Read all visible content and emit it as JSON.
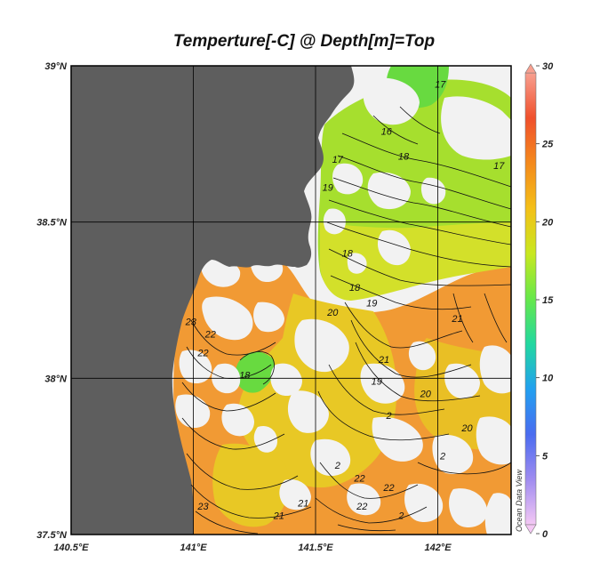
{
  "title": "Temperture[-C] @ Depth[m]=Top",
  "watermark": "Ocean Data View",
  "x_axis": {
    "ticks": [
      {
        "value": 140.5,
        "label": "140.5°E"
      },
      {
        "value": 141.0,
        "label": "141°E"
      },
      {
        "value": 141.5,
        "label": "141.5°E"
      },
      {
        "value": 142.0,
        "label": "142°E"
      }
    ],
    "range": [
      140.5,
      142.3
    ]
  },
  "y_axis": {
    "ticks": [
      {
        "value": 37.5,
        "label": "37.5°N"
      },
      {
        "value": 38.0,
        "label": "38°N"
      },
      {
        "value": 38.5,
        "label": "38.5°N"
      },
      {
        "value": 39.0,
        "label": "39°N"
      }
    ],
    "range": [
      37.5,
      39.0
    ]
  },
  "colorbar": {
    "range": [
      0,
      30
    ],
    "ticks": [
      {
        "value": 0,
        "label": "0"
      },
      {
        "value": 5,
        "label": "5"
      },
      {
        "value": 10,
        "label": "10"
      },
      {
        "value": 15,
        "label": "15"
      },
      {
        "value": 20,
        "label": "20"
      },
      {
        "value": 25,
        "label": "25"
      },
      {
        "value": 30,
        "label": "30"
      }
    ],
    "colors": [
      "#f4c8f4",
      "#a08cf0",
      "#4a6cf0",
      "#22a0f0",
      "#22d8a0",
      "#66e84a",
      "#c8e820",
      "#f4c018",
      "#f48a1c",
      "#f0502c",
      "#f8a090"
    ]
  },
  "colors": {
    "land": "#5e5e5e",
    "no_data": "#f2f2f2",
    "warm": "#f19a34",
    "mid": "#e8c825",
    "cool": "#a6df2e",
    "coolest": "#68da40",
    "contour": "#111111"
  },
  "contour_labels": [
    {
      "text": "17",
      "lon": 142.01,
      "lat": 38.93
    },
    {
      "text": "16",
      "lon": 141.79,
      "lat": 38.78
    },
    {
      "text": "17",
      "lon": 141.59,
      "lat": 38.69
    },
    {
      "text": "18",
      "lon": 141.86,
      "lat": 38.7
    },
    {
      "text": "19",
      "lon": 141.55,
      "lat": 38.6
    },
    {
      "text": "17",
      "lon": 142.25,
      "lat": 38.67
    },
    {
      "text": "18",
      "lon": 141.63,
      "lat": 38.39
    },
    {
      "text": "18",
      "lon": 141.66,
      "lat": 38.28
    },
    {
      "text": "20",
      "lon": 141.57,
      "lat": 38.2
    },
    {
      "text": "19",
      "lon": 141.73,
      "lat": 38.23
    },
    {
      "text": "21",
      "lon": 142.08,
      "lat": 38.18
    },
    {
      "text": "23",
      "lon": 140.99,
      "lat": 38.17
    },
    {
      "text": "22",
      "lon": 141.07,
      "lat": 38.13
    },
    {
      "text": "22",
      "lon": 141.04,
      "lat": 38.07
    },
    {
      "text": "18",
      "lon": 141.21,
      "lat": 38.0
    },
    {
      "text": "21",
      "lon": 141.78,
      "lat": 38.05
    },
    {
      "text": "19",
      "lon": 141.75,
      "lat": 37.98
    },
    {
      "text": "20",
      "lon": 141.95,
      "lat": 37.94
    },
    {
      "text": "2",
      "lon": 141.8,
      "lat": 37.87
    },
    {
      "text": "20",
      "lon": 142.12,
      "lat": 37.83
    },
    {
      "text": "2",
      "lon": 142.02,
      "lat": 37.74
    },
    {
      "text": "2",
      "lon": 141.59,
      "lat": 37.71
    },
    {
      "text": "22",
      "lon": 141.68,
      "lat": 37.67
    },
    {
      "text": "22",
      "lon": 141.8,
      "lat": 37.64
    },
    {
      "text": "21",
      "lon": 141.45,
      "lat": 37.59
    },
    {
      "text": "21",
      "lon": 141.35,
      "lat": 37.55
    },
    {
      "text": "22",
      "lon": 141.69,
      "lat": 37.58
    },
    {
      "text": "2",
      "lon": 141.85,
      "lat": 37.55
    },
    {
      "text": "23",
      "lon": 141.04,
      "lat": 37.58
    }
  ]
}
